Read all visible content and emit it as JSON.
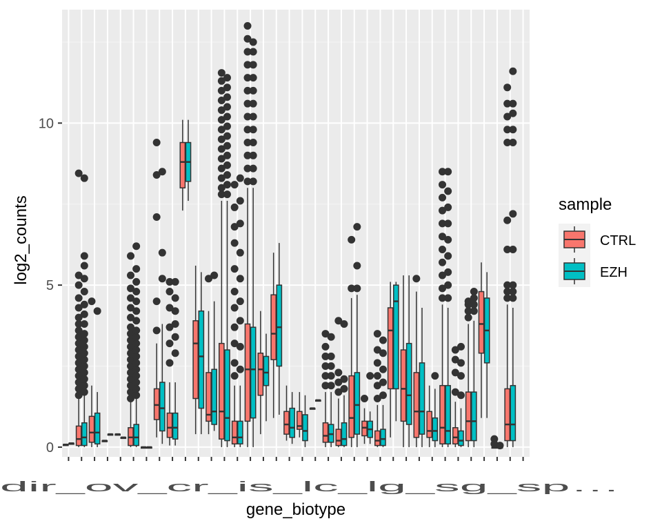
{
  "chart_data": {
    "type": "box",
    "xlabel": "gene_biotype",
    "ylabel": "log2_counts",
    "ylim": [
      -0.3,
      13.5
    ],
    "yticks": [
      0,
      5,
      10
    ],
    "grid": true,
    "legend": {
      "title": "sample",
      "position": "right",
      "entries": [
        {
          "label": "CTRL",
          "color": "#F8766D"
        },
        {
          "label": "EZH",
          "color": "#00BFC4"
        }
      ]
    },
    "x_tick_labels_visible": "dir_ov_cr_is_lc_lg_sg_sp… (overlapping, illegible)",
    "categories_count": 36,
    "boxes": [
      {
        "i": 0,
        "s": "CTRL",
        "q1": 0.08,
        "med": 0.08,
        "q3": 0.08,
        "lo": 0.08,
        "hi": 0.08,
        "out": []
      },
      {
        "i": 0,
        "s": "EZH",
        "q1": 0.12,
        "med": 0.12,
        "q3": 0.12,
        "lo": 0.12,
        "hi": 0.12,
        "out": []
      },
      {
        "i": 1,
        "s": "CTRL",
        "q1": 0.05,
        "med": 0.25,
        "q3": 0.65,
        "lo": 0.0,
        "hi": 1.5,
        "out": [
          1.6,
          1.8,
          2.0,
          2.2,
          2.4,
          2.6,
          2.8,
          3.0,
          3.2,
          3.4,
          3.6,
          3.8,
          4.0,
          4.3,
          4.6,
          5.0,
          5.3,
          8.45
        ]
      },
      {
        "i": 1,
        "s": "EZH",
        "q1": 0.05,
        "med": 0.3,
        "q3": 0.75,
        "lo": 0.0,
        "hi": 1.6,
        "out": [
          1.7,
          1.9,
          2.1,
          2.3,
          2.5,
          2.7,
          2.9,
          3.1,
          3.3,
          3.5,
          3.8,
          4.1,
          4.4,
          4.8,
          5.2,
          5.6,
          5.9,
          8.3
        ]
      },
      {
        "i": 2,
        "s": "CTRL",
        "q1": 0.15,
        "med": 0.45,
        "q3": 0.95,
        "lo": 0.0,
        "hi": 1.9,
        "out": [
          4.5
        ]
      },
      {
        "i": 2,
        "s": "EZH",
        "q1": 0.1,
        "med": 0.45,
        "q3": 1.05,
        "lo": 0.0,
        "hi": 1.7,
        "out": [
          4.2
        ]
      },
      {
        "i": 3,
        "s": "CTRL",
        "q1": 0.2,
        "med": 0.2,
        "q3": 0.2,
        "lo": 0.2,
        "hi": 0.2,
        "out": []
      },
      {
        "i": 3,
        "s": "EZH",
        "q1": 0.4,
        "med": 0.4,
        "q3": 0.4,
        "lo": 0.4,
        "hi": 0.4,
        "out": []
      },
      {
        "i": 4,
        "s": "CTRL",
        "q1": 0.4,
        "med": 0.4,
        "q3": 0.4,
        "lo": 0.4,
        "hi": 0.4,
        "out": []
      },
      {
        "i": 4,
        "s": "EZH",
        "q1": 0.3,
        "med": 0.3,
        "q3": 0.3,
        "lo": 0.3,
        "hi": 0.3,
        "out": []
      },
      {
        "i": 5,
        "s": "CTRL",
        "q1": 0.05,
        "med": 0.3,
        "q3": 0.6,
        "lo": 0.0,
        "hi": 1.4,
        "out": [
          1.5,
          1.7,
          1.9,
          2.1,
          2.3,
          2.5,
          2.7,
          2.9,
          3.1,
          3.3,
          3.5,
          3.7,
          4.0,
          4.3,
          4.6,
          4.9,
          5.3,
          5.9
        ]
      },
      {
        "i": 5,
        "s": "EZH",
        "q1": 0.05,
        "med": 0.3,
        "q3": 0.7,
        "lo": 0.0,
        "hi": 1.5,
        "out": [
          1.6,
          1.8,
          2.0,
          2.2,
          2.4,
          2.6,
          2.8,
          3.0,
          3.2,
          3.4,
          3.6,
          3.9,
          4.2,
          4.5,
          4.8,
          5.1,
          5.5,
          6.2
        ]
      },
      {
        "i": 6,
        "s": "CTRL",
        "q1": 0.0,
        "med": 0.0,
        "q3": 0.0,
        "lo": 0.0,
        "hi": 0.0,
        "out": []
      },
      {
        "i": 6,
        "s": "EZH",
        "q1": 0.0,
        "med": 0.0,
        "q3": 0.0,
        "lo": 0.0,
        "hi": 0.0,
        "out": []
      },
      {
        "i": 7,
        "s": "CTRL",
        "q1": 0.85,
        "med": 1.3,
        "q3": 1.8,
        "lo": 0.3,
        "hi": 3.2,
        "out": [
          3.6,
          4.5,
          7.1,
          8.4,
          9.4
        ]
      },
      {
        "i": 7,
        "s": "EZH",
        "q1": 0.5,
        "med": 1.2,
        "q3": 2.0,
        "lo": 0.1,
        "hi": 3.8,
        "out": [
          5.2,
          6.0,
          8.5
        ]
      },
      {
        "i": 8,
        "s": "CTRL",
        "q1": 0.3,
        "med": 0.6,
        "q3": 1.05,
        "lo": 0.05,
        "hi": 2.0,
        "out": [
          2.6,
          3.2,
          3.7,
          4.3,
          4.8,
          5.1
        ]
      },
      {
        "i": 8,
        "s": "EZH",
        "q1": 0.25,
        "med": 0.6,
        "q3": 1.05,
        "lo": 0.05,
        "hi": 2.0,
        "out": [
          2.9,
          3.4,
          3.8,
          4.2,
          4.6,
          5.1
        ]
      },
      {
        "i": 9,
        "s": "CTRL",
        "q1": 8.0,
        "med": 8.8,
        "q3": 9.4,
        "lo": 7.3,
        "hi": 10.1,
        "out": []
      },
      {
        "i": 9,
        "s": "EZH",
        "q1": 8.2,
        "med": 8.8,
        "q3": 9.4,
        "lo": 7.6,
        "hi": 10.1,
        "out": []
      },
      {
        "i": 10,
        "s": "CTRL",
        "q1": 1.5,
        "med": 3.2,
        "q3": 3.9,
        "lo": 0.4,
        "hi": 5.6,
        "out": []
      },
      {
        "i": 10,
        "s": "EZH",
        "q1": 1.2,
        "med": 2.8,
        "q3": 4.2,
        "lo": 0.4,
        "hi": 5.4,
        "out": []
      },
      {
        "i": 11,
        "s": "CTRL",
        "q1": 0.8,
        "med": 1.0,
        "q3": 2.3,
        "lo": 0.4,
        "hi": 4.2,
        "out": [
          5.2
        ]
      },
      {
        "i": 11,
        "s": "EZH",
        "q1": 0.7,
        "med": 1.1,
        "q3": 2.4,
        "lo": 0.5,
        "hi": 4.5,
        "out": [
          5.3
        ]
      },
      {
        "i": 12,
        "s": "CTRL",
        "q1": 0.25,
        "med": 1.1,
        "q3": 3.2,
        "lo": 0.0,
        "hi": 7.6,
        "out": [
          7.8,
          8.0,
          8.3,
          8.6,
          8.9,
          9.2,
          9.5,
          9.8,
          10.1,
          10.4,
          10.7,
          11.0,
          11.3,
          11.55
        ]
      },
      {
        "i": 12,
        "s": "EZH",
        "q1": 0.2,
        "med": 0.9,
        "q3": 3.0,
        "lo": 0.0,
        "hi": 7.6,
        "out": [
          7.8,
          8.1,
          8.4,
          8.7,
          9.0,
          9.3,
          9.6,
          9.9,
          10.2,
          10.5,
          10.8,
          11.1,
          11.4
        ]
      },
      {
        "i": 13,
        "s": "CTRL",
        "q1": 0.1,
        "med": 0.3,
        "q3": 0.8,
        "lo": 0.0,
        "hi": 1.9,
        "out": [
          2.2,
          2.6,
          3.2,
          3.7,
          4.3,
          4.8,
          5.5,
          6.3,
          6.8,
          7.4,
          8.1
        ]
      },
      {
        "i": 13,
        "s": "EZH",
        "q1": 0.1,
        "med": 0.3,
        "q3": 0.8,
        "lo": 0.0,
        "hi": 1.9,
        "out": [
          2.4,
          3.1,
          3.9,
          4.5,
          5.2,
          6.0,
          6.9,
          7.6,
          8.3
        ]
      },
      {
        "i": 14,
        "s": "CTRL",
        "q1": 0.8,
        "med": 2.4,
        "q3": 3.8,
        "lo": 0.0,
        "hi": 8.0,
        "out": [
          8.2,
          8.6,
          9.0,
          9.4,
          9.8,
          10.2,
          10.6,
          11.0,
          11.4,
          11.8,
          12.2,
          12.6,
          13.0
        ]
      },
      {
        "i": 14,
        "s": "EZH",
        "q1": 0.9,
        "med": 2.4,
        "q3": 3.7,
        "lo": 0.0,
        "hi": 8.0,
        "out": [
          8.2,
          8.6,
          9.0,
          9.4,
          9.8,
          10.2,
          10.6,
          11.0,
          11.4,
          11.8,
          12.2,
          12.5
        ]
      },
      {
        "i": 15,
        "s": "CTRL",
        "q1": 1.6,
        "med": 2.4,
        "q3": 2.9,
        "lo": 0.4,
        "hi": 4.2,
        "out": []
      },
      {
        "i": 15,
        "s": "EZH",
        "q1": 1.9,
        "med": 2.3,
        "q3": 2.8,
        "lo": 0.8,
        "hi": 3.5,
        "out": []
      },
      {
        "i": 16,
        "s": "CTRL",
        "q1": 2.7,
        "med": 3.5,
        "q3": 4.7,
        "lo": 0.9,
        "hi": 6.0,
        "out": []
      },
      {
        "i": 16,
        "s": "EZH",
        "q1": 2.5,
        "med": 3.7,
        "q3": 5.0,
        "lo": 1.0,
        "hi": 6.3,
        "out": []
      },
      {
        "i": 17,
        "s": "CTRL",
        "q1": 0.4,
        "med": 0.7,
        "q3": 1.1,
        "lo": 0.2,
        "hi": 1.9,
        "out": []
      },
      {
        "i": 17,
        "s": "EZH",
        "q1": 0.3,
        "med": 0.6,
        "q3": 1.2,
        "lo": 0.1,
        "hi": 1.7,
        "out": []
      },
      {
        "i": 18,
        "s": "CTRL",
        "q1": 0.55,
        "med": 0.65,
        "q3": 1.1,
        "lo": 0.3,
        "hi": 1.7,
        "out": []
      },
      {
        "i": 18,
        "s": "EZH",
        "q1": 0.2,
        "med": 0.5,
        "q3": 1.0,
        "lo": 0.0,
        "hi": 1.6,
        "out": []
      },
      {
        "i": 19,
        "s": "CTRL",
        "q1": 1.2,
        "med": 1.2,
        "q3": 1.2,
        "lo": 1.2,
        "hi": 1.2,
        "out": []
      },
      {
        "i": 19,
        "s": "EZH",
        "q1": 1.45,
        "med": 1.45,
        "q3": 1.45,
        "lo": 1.45,
        "hi": 1.45,
        "out": []
      },
      {
        "i": 20,
        "s": "CTRL",
        "q1": 0.15,
        "med": 0.35,
        "q3": 0.75,
        "lo": 0.0,
        "hi": 1.7,
        "out": [
          1.9,
          2.2,
          2.5,
          2.8,
          3.1,
          3.5
        ]
      },
      {
        "i": 20,
        "s": "EZH",
        "q1": 0.15,
        "med": 0.4,
        "q3": 0.7,
        "lo": 0.0,
        "hi": 1.7,
        "out": [
          1.9,
          2.2,
          2.5,
          2.8,
          3.4
        ]
      },
      {
        "i": 21,
        "s": "CTRL",
        "q1": 0.05,
        "med": 0.2,
        "q3": 0.55,
        "lo": 0.0,
        "hi": 1.5,
        "out": [
          1.7,
          2.0,
          2.3,
          3.9
        ]
      },
      {
        "i": 21,
        "s": "EZH",
        "q1": 0.05,
        "med": 0.25,
        "q3": 0.75,
        "lo": 0.0,
        "hi": 1.6,
        "out": [
          1.8,
          2.1,
          3.8
        ]
      },
      {
        "i": 22,
        "s": "CTRL",
        "q1": 0.3,
        "med": 0.9,
        "q3": 2.2,
        "lo": 0.0,
        "hi": 4.6,
        "out": [
          4.9,
          6.4
        ]
      },
      {
        "i": 22,
        "s": "EZH",
        "q1": 0.4,
        "med": 1.3,
        "q3": 2.3,
        "lo": 0.0,
        "hi": 4.7,
        "out": [
          4.9,
          5.6,
          6.8
        ]
      },
      {
        "i": 23,
        "s": "CTRL",
        "q1": 0.35,
        "med": 0.6,
        "q3": 0.8,
        "lo": 0.1,
        "hi": 1.2,
        "out": [
          1.5
        ]
      },
      {
        "i": 23,
        "s": "EZH",
        "q1": 0.3,
        "med": 0.55,
        "q3": 0.8,
        "lo": 0.1,
        "hi": 1.1,
        "out": [
          2.2
        ]
      },
      {
        "i": 24,
        "s": "CTRL",
        "q1": 0.05,
        "med": 0.2,
        "q3": 0.5,
        "lo": 0.0,
        "hi": 1.3,
        "out": [
          1.5,
          1.9,
          2.2,
          2.6,
          3.0,
          3.5
        ]
      },
      {
        "i": 24,
        "s": "EZH",
        "q1": 0.05,
        "med": 0.25,
        "q3": 0.55,
        "lo": 0.0,
        "hi": 1.3,
        "out": [
          1.6,
          2.0,
          2.4,
          2.9,
          3.3
        ]
      },
      {
        "i": 25,
        "s": "CTRL",
        "q1": 1.8,
        "med": 3.6,
        "q3": 4.3,
        "lo": 0.3,
        "hi": 5.1,
        "out": []
      },
      {
        "i": 25,
        "s": "EZH",
        "q1": 1.8,
        "med": 4.5,
        "q3": 5.0,
        "lo": 0.8,
        "hi": 5.1,
        "out": []
      },
      {
        "i": 26,
        "s": "CTRL",
        "q1": 0.8,
        "med": 1.8,
        "q3": 3.0,
        "lo": 0.0,
        "hi": 5.3,
        "out": []
      },
      {
        "i": 26,
        "s": "EZH",
        "q1": 0.7,
        "med": 1.6,
        "q3": 3.2,
        "lo": 0.0,
        "hi": 5.3,
        "out": []
      },
      {
        "i": 27,
        "s": "CTRL",
        "q1": 0.3,
        "med": 1.1,
        "q3": 2.3,
        "lo": 0.0,
        "hi": 4.8,
        "out": [
          5.2
        ]
      },
      {
        "i": 27,
        "s": "EZH",
        "q1": 0.4,
        "med": 1.1,
        "q3": 2.6,
        "lo": 0.0,
        "hi": 4.3,
        "out": []
      },
      {
        "i": 28,
        "s": "CTRL",
        "q1": 0.3,
        "med": 0.5,
        "q3": 1.1,
        "lo": 0.0,
        "hi": 1.9,
        "out": []
      },
      {
        "i": 28,
        "s": "EZH",
        "q1": 0.2,
        "med": 0.5,
        "q3": 0.9,
        "lo": 0.0,
        "hi": 1.8,
        "out": [
          2.2
        ]
      },
      {
        "i": 29,
        "s": "CTRL",
        "q1": 0.1,
        "med": 0.6,
        "q3": 1.9,
        "lo": 0.0,
        "hi": 4.4,
        "out": [
          4.6,
          4.9,
          5.3,
          5.7,
          6.1,
          6.5,
          6.9,
          7.3,
          7.7,
          8.1,
          8.5
        ]
      },
      {
        "i": 29,
        "s": "EZH",
        "q1": 0.1,
        "med": 0.5,
        "q3": 1.9,
        "lo": 0.0,
        "hi": 4.3,
        "out": [
          4.6,
          5.0,
          5.4,
          5.9,
          6.4,
          6.9,
          7.4,
          7.9,
          8.5
        ]
      },
      {
        "i": 30,
        "s": "CTRL",
        "q1": 0.1,
        "med": 0.3,
        "q3": 0.6,
        "lo": 0.0,
        "hi": 1.4,
        "out": [
          1.7,
          2.3,
          2.7,
          3.0
        ]
      },
      {
        "i": 30,
        "s": "EZH",
        "q1": 0.05,
        "med": 0.2,
        "q3": 0.5,
        "lo": 0.0,
        "hi": 1.2,
        "out": [
          1.6,
          2.2,
          2.6,
          3.1
        ]
      },
      {
        "i": 31,
        "s": "CTRL",
        "q1": 0.2,
        "med": 0.8,
        "q3": 1.7,
        "lo": 0.0,
        "hi": 3.8,
        "out": [
          4.0,
          4.2,
          4.4,
          4.5
        ]
      },
      {
        "i": 31,
        "s": "EZH",
        "q1": 0.2,
        "med": 0.8,
        "q3": 1.7,
        "lo": 0.0,
        "hi": 3.9,
        "out": [
          4.2,
          4.4,
          4.6,
          4.8
        ]
      },
      {
        "i": 32,
        "s": "CTRL",
        "q1": 2.9,
        "med": 3.8,
        "q3": 4.8,
        "lo": 0.9,
        "hi": 5.7,
        "out": []
      },
      {
        "i": 32,
        "s": "EZH",
        "q1": 2.6,
        "med": 3.6,
        "q3": 4.6,
        "lo": 0.9,
        "hi": 5.4,
        "out": []
      },
      {
        "i": 33,
        "s": "CTRL",
        "q1": 0.0,
        "med": 0.0,
        "q3": 0.0,
        "lo": 0.0,
        "hi": 0.0,
        "out": [
          0.25,
          0.1
        ]
      },
      {
        "i": 33,
        "s": "EZH",
        "q1": 0.0,
        "med": 0.0,
        "q3": 0.0,
        "lo": 0.0,
        "hi": 0.0,
        "out": [
          0.05
        ]
      },
      {
        "i": 34,
        "s": "CTRL",
        "q1": 0.2,
        "med": 0.7,
        "q3": 1.8,
        "lo": 0.0,
        "hi": 4.4,
        "out": [
          4.6,
          4.8,
          5.0,
          6.1,
          7.0,
          9.4,
          9.8,
          10.2,
          10.6,
          11.1
        ]
      },
      {
        "i": 34,
        "s": "EZH",
        "q1": 0.2,
        "med": 0.7,
        "q3": 1.9,
        "lo": 0.0,
        "hi": 4.3,
        "out": [
          4.6,
          4.8,
          5.0,
          6.1,
          7.2,
          9.4,
          9.8,
          10.3,
          10.6,
          11.6
        ]
      }
    ]
  }
}
